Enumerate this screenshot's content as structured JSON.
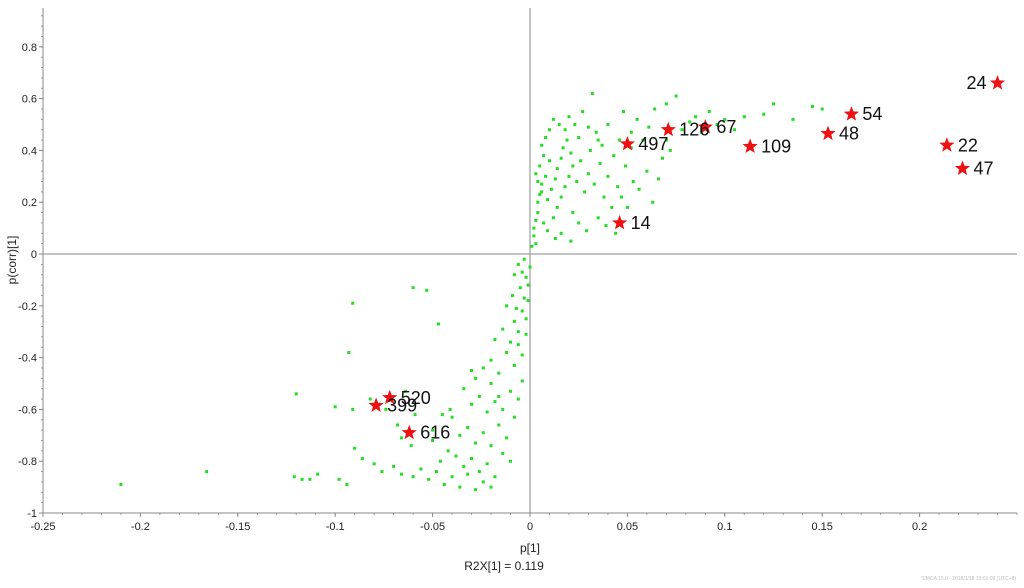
{
  "chart_data": {
    "type": "scatter",
    "xlabel": "p[1]",
    "ylabel": "p(corr)[1]",
    "footer": "R2X[1] = 0.119",
    "software_note": "SIMCA 13.0 - 2018/1/18 13:01:09 (UTC+8)",
    "xlim": [
      -0.25,
      0.25
    ],
    "ylim": [
      -1,
      0.95
    ],
    "xticks": [
      "-0.25",
      "-0.2",
      "-0.15",
      "-0.1",
      "-0.05",
      "0",
      "0.05",
      "0.1",
      "0.15",
      "0.2"
    ],
    "xtick_values": [
      -0.25,
      -0.2,
      -0.15,
      -0.1,
      -0.05,
      0,
      0.05,
      0.1,
      0.15,
      0.2
    ],
    "yticks": [
      "-1",
      "-0.8",
      "-0.6",
      "-0.4",
      "-0.2",
      "0",
      "0.2",
      "0.4",
      "0.6",
      "0.8"
    ],
    "ytick_values": [
      -1,
      -0.8,
      -0.6,
      -0.4,
      -0.2,
      0,
      0.2,
      0.4,
      0.6,
      0.8
    ],
    "grid": false,
    "colors": {
      "points": "#22dd22",
      "highlight": "#ee1111",
      "axis": "#888888"
    },
    "series": [
      {
        "values": [
          [
            -0.21,
            -0.89
          ],
          [
            -0.166,
            -0.84
          ],
          [
            -0.121,
            -0.86
          ],
          [
            -0.117,
            -0.87
          ],
          [
            -0.113,
            -0.87
          ],
          [
            -0.109,
            -0.85
          ],
          [
            -0.098,
            -0.87
          ],
          [
            -0.094,
            -0.89
          ],
          [
            -0.12,
            -0.54
          ],
          [
            -0.1,
            -0.59
          ],
          [
            -0.091,
            -0.6
          ],
          [
            -0.093,
            -0.38
          ],
          [
            -0.091,
            -0.19
          ],
          [
            -0.082,
            -0.56
          ],
          [
            -0.074,
            -0.6
          ],
          [
            -0.068,
            -0.66
          ],
          [
            -0.064,
            -0.53
          ],
          [
            -0.066,
            -0.71
          ],
          [
            -0.061,
            -0.74
          ],
          [
            -0.059,
            -0.62
          ],
          [
            -0.05,
            -0.72
          ],
          [
            -0.05,
            -0.68
          ],
          [
            -0.045,
            -0.62
          ],
          [
            -0.041,
            -0.6
          ],
          [
            -0.03,
            -0.45
          ],
          [
            -0.02,
            -0.5
          ],
          [
            -0.06,
            -0.13
          ],
          [
            -0.053,
            -0.14
          ],
          [
            -0.047,
            -0.27
          ],
          [
            -0.09,
            -0.75
          ],
          [
            -0.086,
            -0.79
          ],
          [
            -0.08,
            -0.81
          ],
          [
            -0.076,
            -0.84
          ],
          [
            -0.07,
            -0.82
          ],
          [
            -0.066,
            -0.85
          ],
          [
            -0.06,
            -0.86
          ],
          [
            -0.056,
            -0.83
          ],
          [
            -0.052,
            -0.87
          ],
          [
            -0.048,
            -0.84
          ],
          [
            -0.044,
            -0.89
          ],
          [
            -0.04,
            -0.86
          ],
          [
            -0.036,
            -0.9
          ],
          [
            -0.032,
            -0.85
          ],
          [
            -0.028,
            -0.91
          ],
          [
            -0.024,
            -0.88
          ],
          [
            -0.02,
            -0.9
          ],
          [
            -0.046,
            -0.8
          ],
          [
            -0.042,
            -0.76
          ],
          [
            -0.038,
            -0.78
          ],
          [
            -0.034,
            -0.82
          ],
          [
            -0.03,
            -0.79
          ],
          [
            -0.026,
            -0.84
          ],
          [
            -0.022,
            -0.81
          ],
          [
            -0.018,
            -0.86
          ],
          [
            -0.014,
            -0.77
          ],
          [
            -0.01,
            -0.8
          ],
          [
            -0.036,
            -0.7
          ],
          [
            -0.032,
            -0.67
          ],
          [
            -0.028,
            -0.73
          ],
          [
            -0.024,
            -0.69
          ],
          [
            -0.02,
            -0.74
          ],
          [
            -0.016,
            -0.66
          ],
          [
            -0.012,
            -0.71
          ],
          [
            -0.008,
            -0.63
          ],
          [
            -0.03,
            -0.58
          ],
          [
            -0.026,
            -0.55
          ],
          [
            -0.022,
            -0.61
          ],
          [
            -0.018,
            -0.57
          ],
          [
            -0.014,
            -0.6
          ],
          [
            -0.01,
            -0.53
          ],
          [
            -0.006,
            -0.56
          ],
          [
            -0.004,
            -0.49
          ],
          [
            -0.024,
            -0.44
          ],
          [
            -0.02,
            -0.41
          ],
          [
            -0.016,
            -0.46
          ],
          [
            -0.012,
            -0.38
          ],
          [
            -0.008,
            -0.43
          ],
          [
            -0.006,
            -0.35
          ],
          [
            -0.004,
            -0.39
          ],
          [
            -0.002,
            -0.31
          ],
          [
            -0.018,
            -0.33
          ],
          [
            -0.014,
            -0.29
          ],
          [
            -0.01,
            -0.34
          ],
          [
            -0.008,
            -0.26
          ],
          [
            -0.006,
            -0.3
          ],
          [
            -0.004,
            -0.22
          ],
          [
            -0.002,
            -0.25
          ],
          [
            -0.001,
            -0.18
          ],
          [
            -0.012,
            -0.2
          ],
          [
            -0.009,
            -0.16
          ],
          [
            -0.007,
            -0.21
          ],
          [
            -0.005,
            -0.13
          ],
          [
            -0.003,
            -0.17
          ],
          [
            -0.002,
            -0.09
          ],
          [
            -0.001,
            -0.12
          ],
          [
            0.0,
            -0.05
          ],
          [
            -0.008,
            -0.08
          ],
          [
            -0.006,
            -0.04
          ],
          [
            -0.004,
            -0.07
          ],
          [
            -0.003,
            -0.02
          ],
          [
            -0.016,
            -0.55
          ],
          [
            -0.028,
            -0.48
          ],
          [
            -0.034,
            -0.52
          ],
          [
            -0.04,
            -0.63
          ],
          [
            0.001,
            0.03
          ],
          [
            0.002,
            0.07
          ],
          [
            0.002,
            0.1
          ],
          [
            0.003,
            0.13
          ],
          [
            0.004,
            0.16
          ],
          [
            0.004,
            0.2
          ],
          [
            0.005,
            0.23
          ],
          [
            0.006,
            0.27
          ],
          [
            0.003,
            0.31
          ],
          [
            0.005,
            0.34
          ],
          [
            0.007,
            0.38
          ],
          [
            0.006,
            0.42
          ],
          [
            0.008,
            0.45
          ],
          [
            0.01,
            0.48
          ],
          [
            0.012,
            0.52
          ],
          [
            0.015,
            0.5
          ],
          [
            0.009,
            0.21
          ],
          [
            0.011,
            0.25
          ],
          [
            0.013,
            0.29
          ],
          [
            0.014,
            0.33
          ],
          [
            0.016,
            0.37
          ],
          [
            0.017,
            0.41
          ],
          [
            0.019,
            0.44
          ],
          [
            0.021,
            0.39
          ],
          [
            0.012,
            0.14
          ],
          [
            0.014,
            0.18
          ],
          [
            0.016,
            0.22
          ],
          [
            0.018,
            0.26
          ],
          [
            0.02,
            0.3
          ],
          [
            0.022,
            0.34
          ],
          [
            0.024,
            0.28
          ],
          [
            0.026,
            0.36
          ],
          [
            0.018,
            0.48
          ],
          [
            0.02,
            0.53
          ],
          [
            0.023,
            0.5
          ],
          [
            0.025,
            0.45
          ],
          [
            0.027,
            0.55
          ],
          [
            0.03,
            0.49
          ],
          [
            0.032,
            0.62
          ],
          [
            0.035,
            0.44
          ],
          [
            0.028,
            0.24
          ],
          [
            0.03,
            0.31
          ],
          [
            0.033,
            0.27
          ],
          [
            0.036,
            0.35
          ],
          [
            0.038,
            0.22
          ],
          [
            0.04,
            0.3
          ],
          [
            0.042,
            0.18
          ],
          [
            0.045,
            0.26
          ],
          [
            0.031,
            0.4
          ],
          [
            0.034,
            0.47
          ],
          [
            0.037,
            0.42
          ],
          [
            0.04,
            0.5
          ],
          [
            0.043,
            0.38
          ],
          [
            0.046,
            0.44
          ],
          [
            0.049,
            0.34
          ],
          [
            0.052,
            0.41
          ],
          [
            0.048,
            0.55
          ],
          [
            0.052,
            0.47
          ],
          [
            0.055,
            0.52
          ],
          [
            0.058,
            0.44
          ],
          [
            0.061,
            0.49
          ],
          [
            0.064,
            0.56
          ],
          [
            0.047,
            0.22
          ],
          [
            0.05,
            0.18
          ],
          [
            0.053,
            0.28
          ],
          [
            0.056,
            0.25
          ],
          [
            0.06,
            0.32
          ],
          [
            0.063,
            0.2
          ],
          [
            0.066,
            0.29
          ],
          [
            0.068,
            0.37
          ],
          [
            0.07,
            0.44
          ],
          [
            0.072,
            0.4
          ],
          [
            0.075,
            0.61
          ],
          [
            0.078,
            0.48
          ],
          [
            0.082,
            0.51
          ],
          [
            0.085,
            0.53
          ],
          [
            0.088,
            0.47
          ],
          [
            0.092,
            0.55
          ],
          [
            0.096,
            0.5
          ],
          [
            0.1,
            0.52
          ],
          [
            0.105,
            0.48
          ],
          [
            0.11,
            0.53
          ],
          [
            0.12,
            0.54
          ],
          [
            0.125,
            0.58
          ],
          [
            0.135,
            0.52
          ],
          [
            0.145,
            0.57
          ],
          [
            0.15,
            0.56
          ],
          [
            0.07,
            0.58
          ],
          [
            0.008,
            0.3
          ],
          [
            0.01,
            0.36
          ],
          [
            0.006,
            0.24
          ],
          [
            0.004,
            0.28
          ],
          [
            0.007,
            0.12
          ],
          [
            0.009,
            0.09
          ],
          [
            0.013,
            0.06
          ],
          [
            0.003,
            0.04
          ],
          [
            0.022,
            0.16
          ],
          [
            0.025,
            0.12
          ],
          [
            0.029,
            0.09
          ],
          [
            0.021,
            0.05
          ],
          [
            0.016,
            0.08
          ],
          [
            0.035,
            0.14
          ],
          [
            0.039,
            0.11
          ],
          [
            0.044,
            0.08
          ]
        ]
      }
    ],
    "highlighted": [
      {
        "label": "24",
        "x": 0.24,
        "y": 0.66
      },
      {
        "label": "54",
        "x": 0.165,
        "y": 0.54
      },
      {
        "label": "48",
        "x": 0.153,
        "y": 0.465
      },
      {
        "label": "22",
        "x": 0.214,
        "y": 0.42
      },
      {
        "label": "47",
        "x": 0.222,
        "y": 0.33
      },
      {
        "label": "109",
        "x": 0.113,
        "y": 0.415
      },
      {
        "label": "67",
        "x": 0.09,
        "y": 0.49
      },
      {
        "label": "126",
        "x": 0.071,
        "y": 0.48
      },
      {
        "label": "497",
        "x": 0.05,
        "y": 0.425
      },
      {
        "label": "14",
        "x": 0.046,
        "y": 0.12
      },
      {
        "label": "520",
        "x": -0.072,
        "y": -0.555
      },
      {
        "label": "399",
        "x": -0.079,
        "y": -0.585
      },
      {
        "label": "616",
        "x": -0.062,
        "y": -0.69
      }
    ]
  }
}
